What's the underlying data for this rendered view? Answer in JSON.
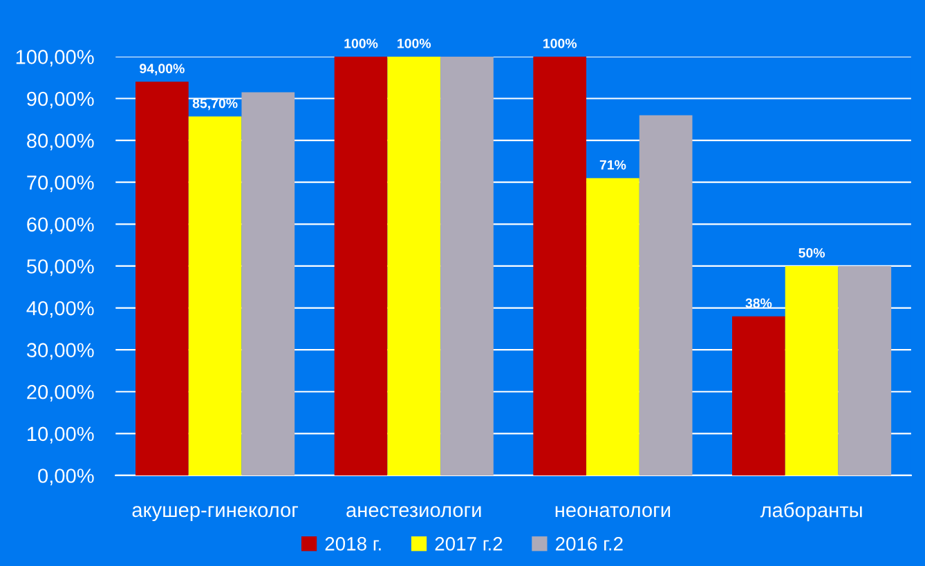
{
  "chart_data": {
    "type": "bar",
    "categories": [
      "акушер-гинеколог",
      "анестезиологи",
      "неонатологи",
      "лаборанты"
    ],
    "series": [
      {
        "name": "2018 г.",
        "color": "#c00000",
        "values": [
          94,
          100,
          100,
          38
        ],
        "value_labels": [
          "94,00%",
          "100%",
          "100%",
          "38%"
        ]
      },
      {
        "name": "2017 г.2",
        "color": "#ffff00",
        "values": [
          85.7,
          100,
          71,
          50
        ],
        "value_labels": [
          "85,70%",
          "100%",
          "71%",
          "50%"
        ]
      },
      {
        "name": "2016 г.2",
        "color": "#aeaab8",
        "values": [
          91.5,
          100,
          86,
          50
        ]
      }
    ],
    "ylim": [
      0,
      100
    ],
    "yticks": [
      {
        "value": 0,
        "label": "0,00%"
      },
      {
        "value": 10,
        "label": "10,00%"
      },
      {
        "value": 20,
        "label": "20,00%"
      },
      {
        "value": 30,
        "label": "30,00%"
      },
      {
        "value": 40,
        "label": "40,00%"
      },
      {
        "value": 50,
        "label": "50,00%"
      },
      {
        "value": 60,
        "label": "60,00%"
      },
      {
        "value": 70,
        "label": "70,00%"
      },
      {
        "value": 80,
        "label": "80,00%"
      },
      {
        "value": 90,
        "label": "90,00%"
      },
      {
        "value": 100,
        "label": "100,00%"
      }
    ],
    "grid": "y",
    "legend": "bottom"
  }
}
